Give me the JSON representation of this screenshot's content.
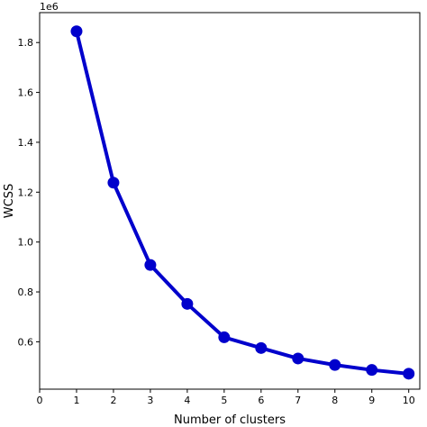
{
  "chart_data": {
    "type": "line",
    "title": "",
    "xlabel": "Number of clusters",
    "ylabel": "WCSS",
    "y_offset_label": "1e6",
    "xlim": [
      0,
      10.3
    ],
    "ylim": [
      0.41,
      1.92
    ],
    "x_ticks": [
      0,
      1,
      2,
      3,
      4,
      5,
      6,
      7,
      8,
      9,
      10
    ],
    "x_tick_labels": [
      "0",
      "1",
      "2",
      "3",
      "4",
      "5",
      "6",
      "7",
      "8",
      "9",
      "10"
    ],
    "y_ticks": [
      0.6,
      0.8,
      1.0,
      1.2,
      1.4,
      1.6,
      1.8
    ],
    "y_tick_labels": [
      "0.6",
      "0.8",
      "1.0",
      "1.2",
      "1.4",
      "1.6",
      "1.8"
    ],
    "grid": false,
    "series": [
      {
        "color": "#0000cc",
        "marker": "circle",
        "x": [
          1,
          2,
          3,
          4,
          5,
          6,
          7,
          8,
          9,
          10
        ],
        "y": [
          1.845,
          1.238,
          0.908,
          0.752,
          0.618,
          0.575,
          0.533,
          0.507,
          0.487,
          0.472
        ]
      }
    ]
  }
}
